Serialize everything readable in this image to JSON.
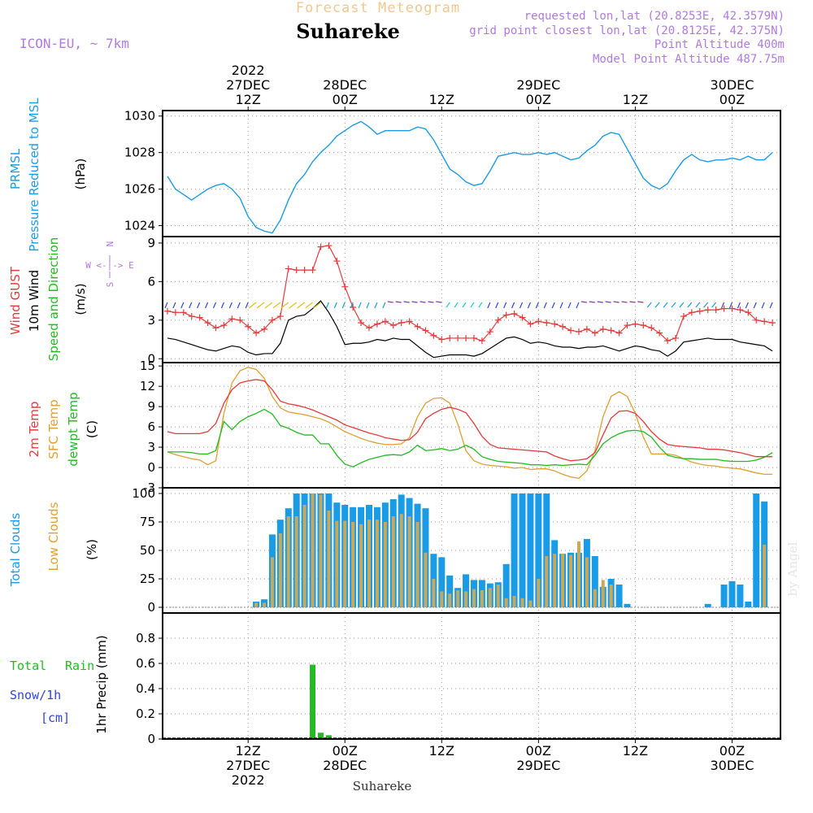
{
  "header": {
    "subtitle": "Forecast Meteogram",
    "location": "Suhareke",
    "model": "ICON-EU, ~ 7km",
    "requested": "requested lon,lat (20.8253E, 42.3579N)",
    "grid_point": "grid point closest lon,lat (20.8125E, 42.375N)",
    "point_alt": "Point Altitude 400m",
    "model_alt": "Model Point Altitude 487.75m",
    "footer": "Suhareke",
    "watermark": "by Angel"
  },
  "colors": {
    "pressure": "#1a9be6",
    "gust": "#e53a3a",
    "wind": "#000000",
    "dewpt": "#22bb22",
    "sfc": "#e0a030",
    "temp2m": "#e53a3a",
    "total_clouds": "#1a9be6",
    "low_clouds": "#c8a85a",
    "rain": "#22bb22",
    "snow": "#3344dd",
    "header": "#b07ae0",
    "subtitle": "#f0c890"
  },
  "time_axis": {
    "top_ticks": [
      {
        "hour": 12,
        "lines": [
          "2022",
          "27DEC",
          "12Z"
        ]
      },
      {
        "hour": 24,
        "lines": [
          "28DEC",
          "00Z"
        ]
      },
      {
        "hour": 36,
        "lines": [
          "12Z"
        ]
      },
      {
        "hour": 48,
        "lines": [
          "29DEC",
          "00Z"
        ]
      },
      {
        "hour": 60,
        "lines": [
          "12Z"
        ]
      },
      {
        "hour": 72,
        "lines": [
          "30DEC",
          "00Z"
        ]
      }
    ],
    "bottom_ticks": [
      {
        "hour": 12,
        "lines": [
          "12Z",
          "27DEC",
          "2022"
        ]
      },
      {
        "hour": 24,
        "lines": [
          "00Z",
          "28DEC"
        ]
      },
      {
        "hour": 36,
        "lines": [
          "12Z"
        ]
      },
      {
        "hour": 48,
        "lines": [
          "00Z",
          "29DEC"
        ]
      },
      {
        "hour": 60,
        "lines": [
          "12Z"
        ]
      },
      {
        "hour": 72,
        "lines": [
          "00Z",
          "30DEC"
        ]
      }
    ]
  },
  "panels": {
    "pressure": {
      "labels": [
        "PRMSL",
        "Pressure Reduced to MSL"
      ],
      "unit": "(hPa)"
    },
    "wind": {
      "labels": [
        "Wind GUST",
        "10m Wind",
        "Speed and Direction"
      ],
      "unit": "(m/s)",
      "compass": [
        "N",
        "W <-|-> E",
        "S"
      ]
    },
    "temp": {
      "labels": [
        "2m Temp",
        "SFC Temp",
        "dewpt Temp"
      ],
      "unit": "(C)"
    },
    "clouds": {
      "labels": [
        "Total Clouds",
        "Low Clouds"
      ],
      "unit": "(%)"
    },
    "precip": {
      "labels": [
        "Total",
        "Rain",
        "Snow/1h",
        "[cm]"
      ],
      "unit": "1hr Precip (mm)"
    }
  },
  "chart_data": [
    {
      "type": "line",
      "title": "PRMSL Pressure Reduced to MSL",
      "ylabel": "(hPa)",
      "ylim": [
        1023.4,
        1030.3
      ],
      "yticks": [
        1024,
        1026,
        1028,
        1030
      ],
      "x_hours": [
        2,
        3,
        4,
        5,
        6,
        7,
        8,
        9,
        10,
        11,
        12,
        13,
        14,
        15,
        16,
        17,
        18,
        19,
        20,
        21,
        22,
        23,
        24,
        25,
        26,
        27,
        28,
        29,
        30,
        31,
        32,
        33,
        34,
        35,
        36,
        37,
        38,
        39,
        40,
        41,
        42,
        43,
        44,
        45,
        46,
        47,
        48,
        49,
        50,
        51,
        52,
        53,
        54,
        55,
        56,
        57,
        58,
        59,
        60,
        61,
        62,
        63,
        64,
        65,
        66,
        67,
        68,
        69,
        70,
        71,
        72,
        73,
        74,
        75,
        76,
        77
      ],
      "series": [
        {
          "name": "PRMSL",
          "values": [
            1026.7,
            1026.0,
            1025.7,
            1025.4,
            1025.7,
            1026.0,
            1026.2,
            1026.3,
            1026.0,
            1025.5,
            1024.5,
            1023.9,
            1023.7,
            1023.6,
            1024.3,
            1025.4,
            1026.3,
            1026.8,
            1027.5,
            1028.0,
            1028.4,
            1028.9,
            1029.2,
            1029.5,
            1029.7,
            1029.4,
            1029.0,
            1029.2,
            1029.2,
            1029.2,
            1029.2,
            1029.4,
            1029.3,
            1028.7,
            1027.9,
            1027.1,
            1026.8,
            1026.4,
            1026.2,
            1026.3,
            1027.0,
            1027.8,
            1027.9,
            1028.0,
            1027.9,
            1027.9,
            1028.0,
            1027.9,
            1028.0,
            1027.8,
            1027.6,
            1027.7,
            1028.1,
            1028.4,
            1028.9,
            1029.1,
            1029.0,
            1028.2,
            1027.4,
            1026.6,
            1026.2,
            1026.0,
            1026.3,
            1027.0,
            1027.6,
            1027.9,
            1027.6,
            1027.5,
            1027.6,
            1027.6,
            1027.7,
            1027.6,
            1027.8,
            1027.6,
            1027.6,
            1028.0
          ]
        }
      ]
    },
    {
      "type": "line",
      "title": "Wind GUST / 10m Wind Speed and Direction",
      "ylabel": "(m/s)",
      "ylim": [
        -0.3,
        9.5
      ],
      "yticks": [
        0,
        3,
        6,
        9
      ],
      "x_hours": [
        2,
        3,
        4,
        5,
        6,
        7,
        8,
        9,
        10,
        11,
        12,
        13,
        14,
        15,
        16,
        17,
        18,
        19,
        20,
        21,
        22,
        23,
        24,
        25,
        26,
        27,
        28,
        29,
        30,
        31,
        32,
        33,
        34,
        35,
        36,
        37,
        38,
        39,
        40,
        41,
        42,
        43,
        44,
        45,
        46,
        47,
        48,
        49,
        50,
        51,
        52,
        53,
        54,
        55,
        56,
        57,
        58,
        59,
        60,
        61,
        62,
        63,
        64,
        65,
        66,
        67,
        68,
        69,
        70,
        71,
        72,
        73,
        74,
        75,
        76,
        77
      ],
      "series": [
        {
          "name": "Wind GUST",
          "values": [
            3.7,
            3.6,
            3.6,
            3.3,
            3.2,
            2.8,
            2.4,
            2.6,
            3.1,
            3.0,
            2.5,
            2.0,
            2.3,
            3.0,
            3.3,
            7.0,
            6.9,
            6.9,
            6.9,
            8.7,
            8.8,
            7.6,
            5.6,
            4.0,
            2.8,
            2.4,
            2.7,
            2.9,
            2.6,
            2.8,
            2.9,
            2.5,
            2.2,
            1.8,
            1.5,
            1.6,
            1.6,
            1.6,
            1.6,
            1.4,
            2.1,
            3.0,
            3.4,
            3.5,
            3.2,
            2.7,
            2.9,
            2.8,
            2.7,
            2.5,
            2.2,
            2.1,
            2.3,
            2.0,
            2.3,
            2.2,
            2.0,
            2.6,
            2.7,
            2.6,
            2.4,
            2.0,
            1.4,
            1.6,
            3.3,
            3.6,
            3.7,
            3.8,
            3.8,
            3.9,
            3.9,
            3.8,
            3.6,
            3.0,
            2.9,
            2.8
          ]
        },
        {
          "name": "10m Wind",
          "values": [
            1.6,
            1.5,
            1.3,
            1.1,
            0.9,
            0.7,
            0.6,
            0.8,
            1.0,
            0.9,
            0.5,
            0.3,
            0.4,
            0.4,
            1.2,
            3.0,
            3.3,
            3.4,
            3.9,
            4.5,
            3.6,
            2.5,
            1.1,
            1.2,
            1.2,
            1.3,
            1.5,
            1.4,
            1.6,
            1.5,
            1.5,
            1.0,
            0.5,
            0.1,
            0.2,
            0.3,
            0.3,
            0.3,
            0.2,
            0.4,
            0.8,
            1.2,
            1.6,
            1.7,
            1.5,
            1.2,
            1.3,
            1.2,
            1.0,
            0.9,
            0.9,
            0.8,
            0.9,
            0.9,
            1.0,
            0.8,
            0.6,
            0.8,
            1.0,
            0.9,
            0.7,
            0.6,
            0.2,
            0.6,
            1.3,
            1.4,
            1.5,
            1.6,
            1.5,
            1.5,
            1.5,
            1.3,
            1.2,
            1.1,
            1.0,
            0.6
          ]
        }
      ]
    },
    {
      "type": "line",
      "title": "2m Temp / SFC Temp / dewpt Temp",
      "ylabel": "(C)",
      "ylim": [
        -3,
        15.5
      ],
      "yticks": [
        -3,
        0,
        3,
        6,
        9,
        12,
        15
      ],
      "x_hours": [
        2,
        3,
        4,
        5,
        6,
        7,
        8,
        9,
        10,
        11,
        12,
        13,
        14,
        15,
        16,
        17,
        18,
        19,
        20,
        21,
        22,
        23,
        24,
        25,
        26,
        27,
        28,
        29,
        30,
        31,
        32,
        33,
        34,
        35,
        36,
        37,
        38,
        39,
        40,
        41,
        42,
        43,
        44,
        45,
        46,
        47,
        48,
        49,
        50,
        51,
        52,
        53,
        54,
        55,
        56,
        57,
        58,
        59,
        60,
        61,
        62,
        63,
        64,
        65,
        66,
        67,
        68,
        69,
        70,
        71,
        72,
        73,
        74,
        75,
        76,
        77
      ],
      "series": [
        {
          "name": "2m Temp",
          "values": [
            5.3,
            5.0,
            5.0,
            5.0,
            5.0,
            5.3,
            6.5,
            9.5,
            11.5,
            12.5,
            12.8,
            13.0,
            12.8,
            11.5,
            9.8,
            9.4,
            9.2,
            8.9,
            8.5,
            8.0,
            7.5,
            7.0,
            6.3,
            5.9,
            5.5,
            5.1,
            4.8,
            4.4,
            4.2,
            4.0,
            4.1,
            5.2,
            7.2,
            8.0,
            8.6,
            8.9,
            8.6,
            8.1,
            6.5,
            4.6,
            3.4,
            2.9,
            2.8,
            2.7,
            2.6,
            2.5,
            2.4,
            2.3,
            1.7,
            1.3,
            1.0,
            1.1,
            1.3,
            2.2,
            4.8,
            7.3,
            8.3,
            8.4,
            8.0,
            6.8,
            5.3,
            4.2,
            3.4,
            3.2,
            3.1,
            3.0,
            2.9,
            2.7,
            2.7,
            2.6,
            2.4,
            2.2,
            1.9,
            1.6,
            1.6,
            1.6
          ]
        },
        {
          "name": "SFC Temp",
          "values": [
            2.3,
            1.9,
            1.6,
            1.3,
            1.1,
            0.4,
            1.0,
            8.0,
            12.5,
            14.3,
            14.8,
            14.5,
            13.2,
            10.5,
            8.8,
            8.2,
            8.0,
            7.8,
            7.5,
            7.2,
            6.7,
            6.0,
            5.3,
            4.8,
            4.3,
            3.9,
            3.6,
            3.4,
            3.4,
            3.5,
            4.4,
            7.5,
            9.5,
            10.2,
            10.3,
            9.5,
            6.4,
            2.5,
            1.0,
            0.5,
            0.3,
            0.2,
            0.1,
            -0.1,
            0.0,
            -0.3,
            -0.2,
            -0.2,
            -0.5,
            -1.0,
            -1.4,
            -1.6,
            -0.5,
            2.5,
            7.5,
            10.5,
            11.2,
            10.5,
            8.0,
            4.5,
            2.0,
            2.0,
            2.0,
            1.8,
            1.3,
            0.8,
            0.5,
            0.3,
            0.2,
            0.0,
            -0.1,
            -0.2,
            -0.5,
            -0.8,
            -1.0,
            -1.0
          ]
        },
        {
          "name": "dewpt Temp",
          "values": [
            2.3,
            2.3,
            2.3,
            2.2,
            2.0,
            2.0,
            2.5,
            6.8,
            5.6,
            6.8,
            7.5,
            8.0,
            8.6,
            7.9,
            6.2,
            5.8,
            5.2,
            4.8,
            4.8,
            3.5,
            3.5,
            1.8,
            0.5,
            0.1,
            0.7,
            1.2,
            1.5,
            1.8,
            1.9,
            1.8,
            2.3,
            3.3,
            2.5,
            2.6,
            2.8,
            2.5,
            2.7,
            3.3,
            2.7,
            1.6,
            1.2,
            0.9,
            0.8,
            0.7,
            0.6,
            0.4,
            0.4,
            0.3,
            0.4,
            0.3,
            0.4,
            0.5,
            0.4,
            1.8,
            3.5,
            4.4,
            5.0,
            5.4,
            5.5,
            5.3,
            4.5,
            3.0,
            1.8,
            1.5,
            1.3,
            1.3,
            1.2,
            1.2,
            1.2,
            1.0,
            0.9,
            0.9,
            0.9,
            1.1,
            1.5,
            2.2
          ]
        }
      ]
    },
    {
      "type": "bar",
      "title": "Total Clouds / Low Clouds",
      "ylabel": "(%)",
      "ylim": [
        -5,
        105
      ],
      "yticks": [
        0,
        25,
        50,
        75,
        100
      ],
      "x_hours": [
        2,
        3,
        4,
        5,
        6,
        7,
        8,
        9,
        10,
        11,
        12,
        13,
        14,
        15,
        16,
        17,
        18,
        19,
        20,
        21,
        22,
        23,
        24,
        25,
        26,
        27,
        28,
        29,
        30,
        31,
        32,
        33,
        34,
        35,
        36,
        37,
        38,
        39,
        40,
        41,
        42,
        43,
        44,
        45,
        46,
        47,
        48,
        49,
        50,
        51,
        52,
        53,
        54,
        55,
        56,
        57,
        58,
        59,
        60,
        61,
        62,
        63,
        64,
        65,
        66,
        67,
        68,
        69,
        70,
        71,
        72,
        73,
        74,
        75,
        76,
        77
      ],
      "series": [
        {
          "name": "Total Clouds",
          "values": [
            0,
            0,
            0,
            0,
            0,
            0,
            0,
            0,
            0,
            0,
            0,
            5,
            7,
            64,
            77,
            87,
            100,
            100,
            100,
            100,
            100,
            92,
            90,
            88,
            88,
            90,
            88,
            92,
            95,
            99,
            96,
            91,
            87,
            47,
            44,
            28,
            17,
            29,
            24,
            24,
            21,
            22,
            38,
            100,
            100,
            100,
            100,
            100,
            59,
            47,
            48,
            48,
            60,
            45,
            18,
            25,
            20,
            3,
            0,
            0,
            0,
            0,
            0,
            0,
            0,
            0,
            0,
            3,
            0,
            20,
            23,
            20,
            5,
            100,
            93,
            0
          ]
        },
        {
          "name": "Low Clouds",
          "values": [
            0,
            0,
            0,
            0,
            0,
            0,
            0,
            0,
            0,
            0,
            0,
            4,
            4,
            44,
            65,
            80,
            80,
            90,
            100,
            99,
            85,
            76,
            76,
            75,
            73,
            77,
            77,
            75,
            80,
            82,
            80,
            75,
            48,
            25,
            14,
            12,
            15,
            14,
            16,
            15,
            17,
            20,
            8,
            10,
            8,
            6,
            25,
            45,
            47,
            47,
            46,
            58,
            44,
            16,
            24,
            20,
            0,
            0,
            0,
            0,
            0,
            0,
            0,
            0,
            0,
            0,
            0,
            0,
            0,
            0,
            0,
            0,
            0,
            0,
            55,
            0
          ]
        }
      ]
    },
    {
      "type": "bar",
      "title": "1hr Precip",
      "ylabel": "1hr Precip (mm)",
      "ylim": [
        0,
        1.0
      ],
      "yticks": [
        0,
        0.2,
        0.4,
        0.6,
        0.8
      ],
      "x_hours": [
        17,
        20,
        21,
        22
      ],
      "series": [
        {
          "name": "Total Rain",
          "values": [
            0.005,
            0.59,
            0.05,
            0.03
          ]
        },
        {
          "name": "Snow/1h",
          "values": [
            0,
            0,
            0,
            0
          ]
        }
      ]
    }
  ]
}
